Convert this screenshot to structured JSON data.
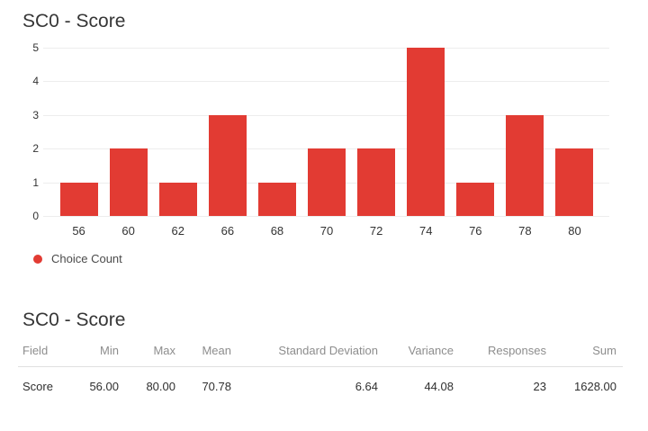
{
  "colors": {
    "accent_red": "#e23b33",
    "grid_line": "#ededed",
    "axis_text": "#333333",
    "title_text": "#363636",
    "legend_text": "#4a4a4a",
    "table_header_text": "#8d8d8d",
    "table_value_text": "#2f2f2f",
    "divider": "#e0e0e0",
    "background": "#ffffff"
  },
  "chart_section": {
    "title": "SC0 - Score",
    "legend_label": "Choice Count"
  },
  "chart_data": {
    "type": "bar",
    "title": "SC0 - Score",
    "categories": [
      "56",
      "60",
      "62",
      "66",
      "68",
      "70",
      "72",
      "74",
      "76",
      "78",
      "80"
    ],
    "series": [
      {
        "name": "Choice Count",
        "values": [
          1,
          2,
          1,
          3,
          1,
          2,
          2,
          5,
          1,
          3,
          2
        ]
      }
    ],
    "xlabel": "",
    "ylabel": "",
    "ylim": [
      0,
      5
    ],
    "yticks": [
      0,
      1,
      2,
      3,
      4,
      5
    ],
    "grid": true,
    "legend_position": "bottom-left",
    "bar_color": "#e23b33"
  },
  "table_section": {
    "title": "SC0 - Score",
    "columns": [
      "Field",
      "Min",
      "Max",
      "Mean",
      "Standard Deviation",
      "Variance",
      "Responses",
      "Sum"
    ],
    "rows": [
      {
        "field": "Score",
        "min": "56.00",
        "max": "80.00",
        "mean": "70.78",
        "std_dev": "6.64",
        "variance": "44.08",
        "responses": "23",
        "sum": "1628.00"
      }
    ]
  }
}
